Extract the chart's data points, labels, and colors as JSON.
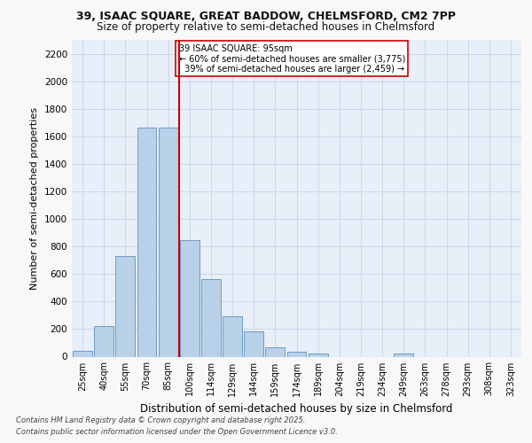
{
  "title_line1": "39, ISAAC SQUARE, GREAT BADDOW, CHELMSFORD, CM2 7PP",
  "title_line2": "Size of property relative to semi-detached houses in Chelmsford",
  "xlabel": "Distribution of semi-detached houses by size in Chelmsford",
  "ylabel": "Number of semi-detached properties",
  "categories": [
    "25sqm",
    "40sqm",
    "55sqm",
    "70sqm",
    "85sqm",
    "100sqm",
    "114sqm",
    "129sqm",
    "144sqm",
    "159sqm",
    "174sqm",
    "189sqm",
    "204sqm",
    "219sqm",
    "234sqm",
    "249sqm",
    "263sqm",
    "278sqm",
    "293sqm",
    "308sqm",
    "323sqm"
  ],
  "values": [
    45,
    225,
    730,
    1665,
    1665,
    845,
    565,
    295,
    185,
    70,
    35,
    20,
    0,
    0,
    0,
    20,
    0,
    0,
    0,
    0,
    0
  ],
  "bar_color": "#b8d0e8",
  "bar_edge_color": "#6090c0",
  "highlight_label": "39 ISAAC SQUARE: 95sqm",
  "pct_smaller": "60% of semi-detached houses are smaller (3,775)",
  "pct_larger": "39% of semi-detached houses are larger (2,459)",
  "vline_color": "#cc0000",
  "box_edge_color": "#cc0000",
  "ylim": [
    0,
    2300
  ],
  "yticks": [
    0,
    200,
    400,
    600,
    800,
    1000,
    1200,
    1400,
    1600,
    1800,
    2000,
    2200
  ],
  "grid_color": "#c8d8e8",
  "background_color": "#e8eff8",
  "fig_background": "#f8f8f8",
  "footer_line1": "Contains HM Land Registry data © Crown copyright and database right 2025.",
  "footer_line2": "Contains public sector information licensed under the Open Government Licence v3.0."
}
